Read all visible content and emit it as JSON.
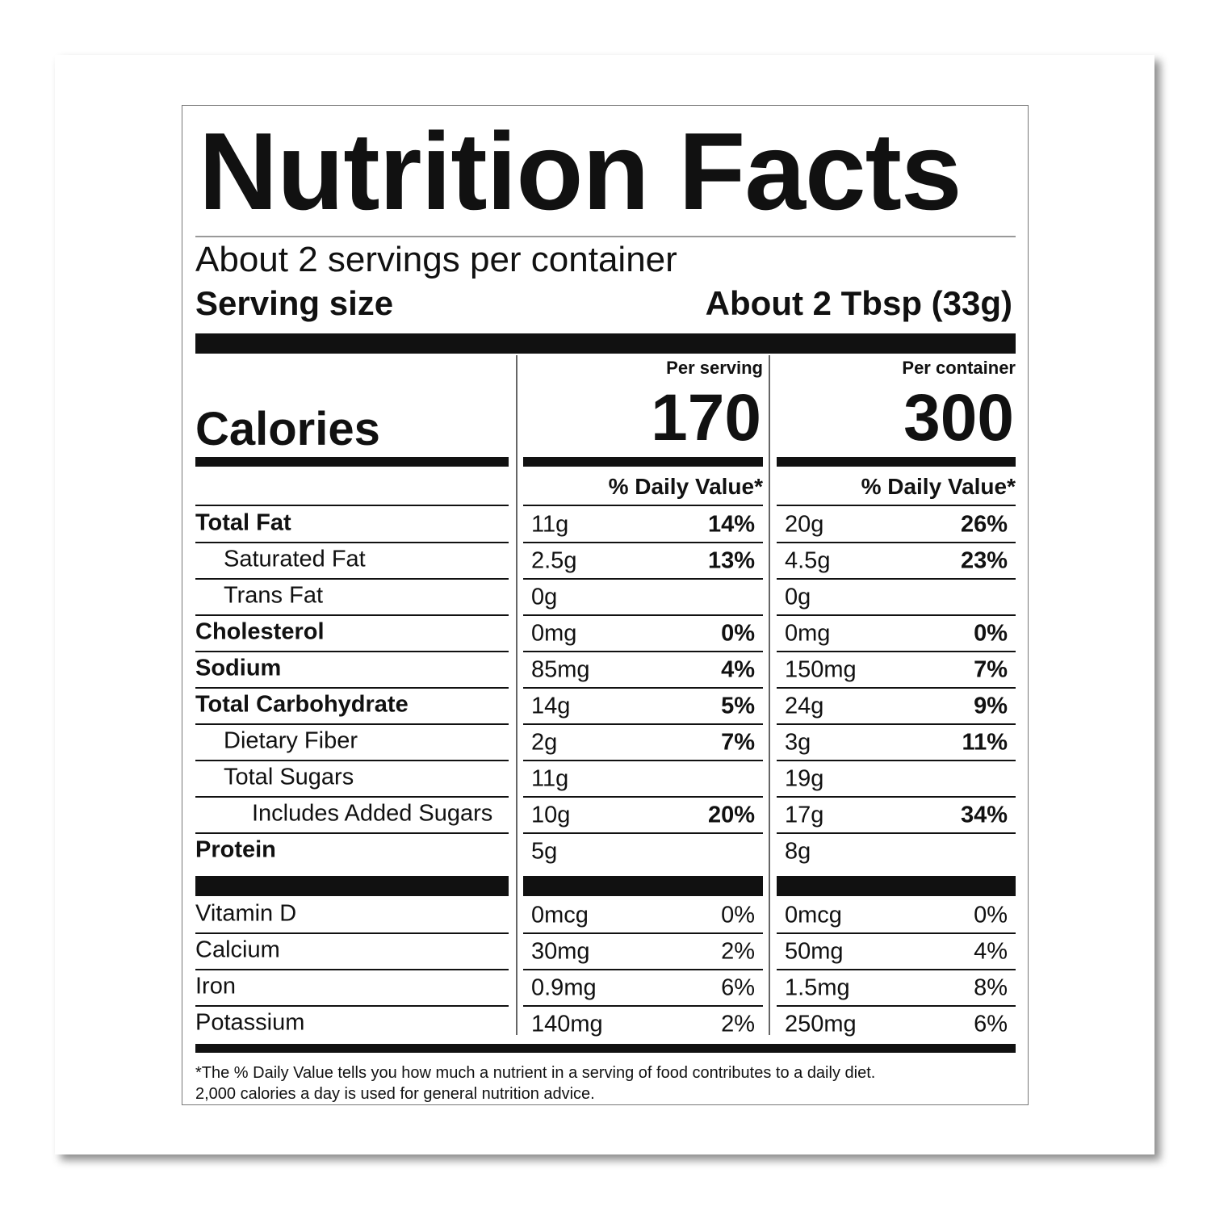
{
  "title": "Nutrition Facts",
  "servings_per_container": "About 2 servings per container",
  "serving_size_label": "Serving size",
  "serving_size": "About 2 Tbsp (33g)",
  "calories_label": "Calories",
  "columns": [
    {
      "header": "Per serving",
      "calories": 170,
      "dv_header": "% Daily Value*"
    },
    {
      "header": "Per container",
      "calories": 300,
      "dv_header": "% Daily Value*"
    }
  ],
  "nutrients": [
    {
      "name": "Total Fat",
      "bold": true,
      "indent": 0,
      "values": [
        [
          "11g",
          "14%"
        ],
        [
          "20g",
          "26%"
        ]
      ]
    },
    {
      "name": "Saturated Fat",
      "bold": false,
      "indent": 1,
      "values": [
        [
          "2.5g",
          "13%"
        ],
        [
          "4.5g",
          "23%"
        ]
      ]
    },
    {
      "name": "Trans Fat",
      "bold": false,
      "indent": 1,
      "values": [
        [
          "0g"
        ],
        [
          "0g"
        ]
      ]
    },
    {
      "name": "Cholesterol",
      "bold": true,
      "indent": 0,
      "values": [
        [
          "0mg",
          "0%"
        ],
        [
          "0mg",
          "0%"
        ]
      ]
    },
    {
      "name": "Sodium",
      "bold": true,
      "indent": 0,
      "values": [
        [
          "85mg",
          "4%"
        ],
        [
          "150mg",
          "7%"
        ]
      ]
    },
    {
      "name": "Total Carbohydrate",
      "bold": true,
      "indent": 0,
      "values": [
        [
          "14g",
          "5%"
        ],
        [
          "24g",
          "9%"
        ]
      ]
    },
    {
      "name": "Dietary Fiber",
      "bold": false,
      "indent": 1,
      "values": [
        [
          "2g",
          "7%"
        ],
        [
          "3g",
          "11%"
        ]
      ]
    },
    {
      "name": "Total Sugars",
      "bold": false,
      "indent": 1,
      "values": [
        [
          "11g"
        ],
        [
          "19g"
        ]
      ]
    },
    {
      "name": "Includes Added Sugars",
      "bold": false,
      "indent": 2,
      "values": [
        [
          "10g",
          "20%"
        ],
        [
          "17g",
          "34%"
        ]
      ]
    },
    {
      "name": "Protein",
      "bold": true,
      "indent": 0,
      "values": [
        [
          "5g"
        ],
        [
          "8g"
        ]
      ]
    }
  ],
  "vitamins": [
    {
      "name": "Vitamin D",
      "values": [
        [
          "0mcg",
          "0%"
        ],
        [
          "0mcg",
          "0%"
        ]
      ]
    },
    {
      "name": "Calcium",
      "values": [
        [
          "30mg",
          "2%"
        ],
        [
          "50mg",
          "4%"
        ]
      ]
    },
    {
      "name": "Iron",
      "values": [
        [
          "0.9mg",
          "6%"
        ],
        [
          "1.5mg",
          "8%"
        ]
      ]
    },
    {
      "name": "Potassium",
      "values": [
        [
          "140mg",
          "2%"
        ],
        [
          "250mg",
          "6%"
        ]
      ]
    }
  ],
  "footnote": [
    "*The % Daily Value tells you how much a nutrient in a serving of food contributes to a daily diet.",
    "2,000 calories a day is used for general nutrition advice."
  ]
}
